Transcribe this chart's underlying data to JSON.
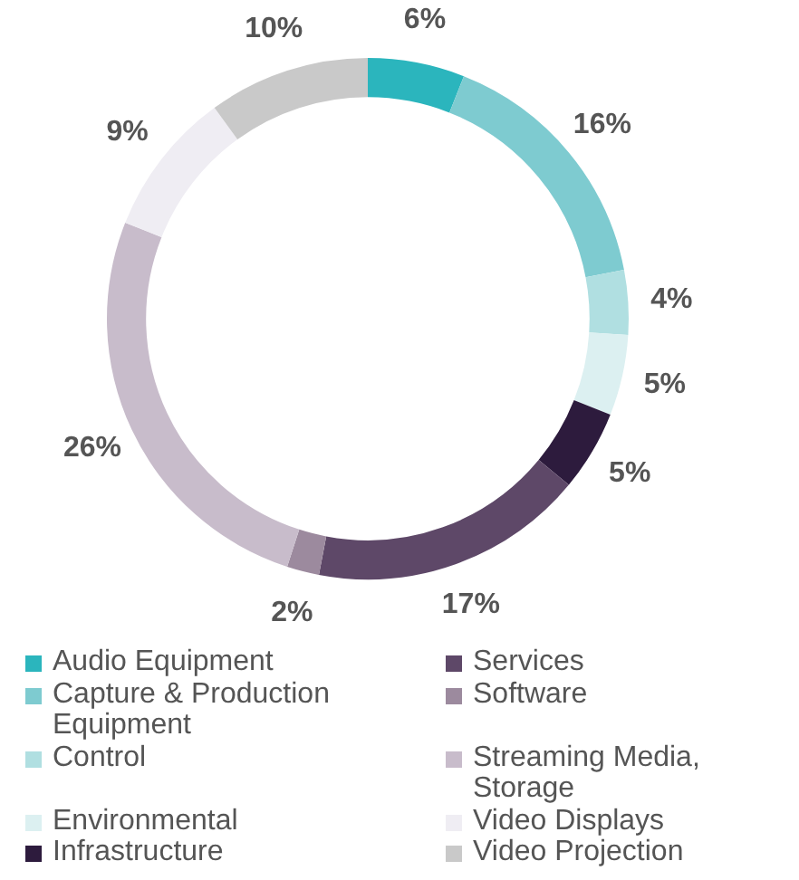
{
  "chart_data": {
    "type": "donut",
    "categories": [
      "Audio Equipment",
      "Capture & Production Equipment",
      "Control",
      "Environmental",
      "Infrastructure",
      "Services",
      "Software",
      "Streaming Media, Storage",
      "Video Displays",
      "Video Projection"
    ],
    "values": [
      6,
      16,
      4,
      5,
      5,
      17,
      2,
      26,
      9,
      10
    ],
    "colors": [
      "#2bb5bd",
      "#7ecbd0",
      "#b0dfe1",
      "#dcf0f1",
      "#2d1b3d",
      "#5e4868",
      "#9c8a9e",
      "#c8bccb",
      "#efedf3",
      "#c9c9c9"
    ],
    "value_labels": [
      "6%",
      "16%",
      "4%",
      "5%",
      "5%",
      "17%",
      "2%",
      "26%",
      "9%",
      "10%"
    ],
    "legend": "bottom"
  }
}
